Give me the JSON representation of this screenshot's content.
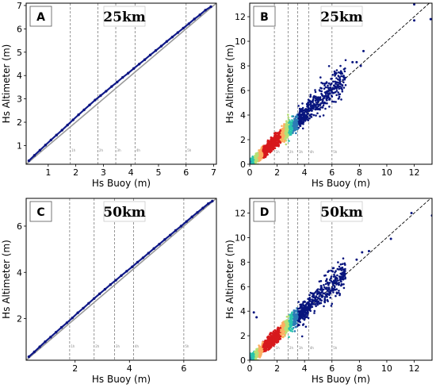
{
  "chart_data": [
    {
      "panel": "A",
      "type": "scatter",
      "annotation": "25km",
      "xlabel": "Hs Buoy (m)",
      "ylabel": "Hs Altimeter (m)",
      "xlim": [
        0.2,
        7.1
      ],
      "ylim": [
        0.2,
        7.1
      ],
      "xticks": [
        1,
        2,
        3,
        4,
        5,
        6,
        7
      ],
      "yticks": [
        1,
        2,
        3,
        4,
        5,
        6,
        7
      ],
      "vlines": [
        1.8,
        2.8,
        3.45,
        4.15,
        6.0
      ],
      "vline_labels": [
        "1h",
        "2h",
        "3h",
        "4h",
        "5h"
      ],
      "x": [
        0.3,
        0.5,
        0.7,
        0.9,
        1.1,
        1.3,
        1.5,
        1.7,
        1.9,
        2.1,
        2.3,
        2.5,
        2.7,
        2.9,
        3.1,
        3.3,
        3.5,
        3.7,
        3.9,
        4.1,
        4.3,
        4.5,
        4.7,
        4.9,
        5.1,
        5.3,
        5.5,
        5.7,
        5.9,
        6.1,
        6.3,
        6.5,
        6.7,
        6.9
      ],
      "y": [
        0.35,
        0.58,
        0.8,
        1.02,
        1.24,
        1.45,
        1.66,
        1.88,
        2.1,
        2.32,
        2.53,
        2.74,
        2.95,
        3.14,
        3.33,
        3.53,
        3.72,
        3.92,
        4.1,
        4.3,
        4.49,
        4.68,
        4.88,
        5.07,
        5.26,
        5.46,
        5.65,
        5.84,
        6.03,
        6.22,
        6.42,
        6.6,
        6.8,
        6.95
      ],
      "reference_line": "1:1"
    },
    {
      "panel": "B",
      "type": "scatter",
      "annotation": "25km",
      "xlabel": "Hs Buoy (m)",
      "ylabel": "Hs Altimeter (m)",
      "xlim": [
        0,
        13.3
      ],
      "ylim": [
        0,
        13.1
      ],
      "xticks": [
        0,
        2,
        4,
        6,
        8,
        10,
        12
      ],
      "yticks": [
        0,
        2,
        4,
        6,
        8,
        10,
        12
      ],
      "vlines": [
        1.8,
        2.8,
        3.5,
        4.3,
        6.0
      ],
      "vline_labels": [
        "1h",
        "2h",
        "3h",
        "4h",
        "5h"
      ],
      "outliers": [
        [
          12.0,
          13.0
        ],
        [
          12.0,
          11.7
        ],
        [
          13.2,
          11.8
        ],
        [
          8.3,
          9.2
        ],
        [
          7.5,
          8.3
        ],
        [
          7.8,
          8.3
        ],
        [
          8.1,
          8.0
        ]
      ],
      "reference_line": "1:1",
      "colormap": "density"
    },
    {
      "panel": "C",
      "type": "scatter",
      "annotation": "50km",
      "xlabel": "Hs Buoy (m)",
      "ylabel": "Hs Altimeter (m)",
      "xlim": [
        0.2,
        7.2
      ],
      "ylim": [
        0.2,
        7.2
      ],
      "xticks": [
        2,
        4,
        6
      ],
      "yticks": [
        2,
        4,
        6
      ],
      "vlines": [
        1.8,
        2.7,
        3.45,
        4.15,
        6.0
      ],
      "vline_labels": [
        "1h",
        "2h",
        "3h",
        "4h",
        "5h"
      ],
      "x": [
        0.3,
        0.5,
        0.7,
        0.9,
        1.1,
        1.3,
        1.5,
        1.7,
        1.9,
        2.1,
        2.3,
        2.5,
        2.7,
        2.9,
        3.1,
        3.3,
        3.5,
        3.7,
        3.9,
        4.1,
        4.3,
        4.5,
        4.7,
        4.9,
        5.1,
        5.3,
        5.5,
        5.7,
        5.9,
        6.1,
        6.3,
        6.5,
        6.7,
        6.9,
        7.05
      ],
      "y": [
        0.35,
        0.56,
        0.78,
        1.0,
        1.2,
        1.41,
        1.62,
        1.82,
        2.03,
        2.25,
        2.45,
        2.66,
        2.87,
        3.07,
        3.27,
        3.47,
        3.66,
        3.86,
        4.05,
        4.24,
        4.44,
        4.63,
        4.83,
        5.03,
        5.22,
        5.42,
        5.61,
        5.81,
        6.0,
        6.2,
        6.4,
        6.59,
        6.78,
        6.97,
        7.08
      ],
      "reference_line": "1:1"
    },
    {
      "panel": "D",
      "type": "scatter",
      "annotation": "50km",
      "xlabel": "Hs Buoy (m)",
      "ylabel": "Hs Altimeter (m)",
      "xlim": [
        0,
        13.3
      ],
      "ylim": [
        0,
        13.2
      ],
      "xticks": [
        0,
        2,
        4,
        6,
        8,
        10,
        12
      ],
      "yticks": [
        0,
        2,
        4,
        6,
        8,
        10,
        12
      ],
      "vlines": [
        1.8,
        2.8,
        3.5,
        4.3,
        6.0
      ],
      "vline_labels": [
        "1h",
        "2h",
        "3h",
        "4h",
        "5h"
      ],
      "outliers": [
        [
          11.8,
          12.0
        ],
        [
          13.3,
          11.8
        ],
        [
          10.3,
          9.9
        ],
        [
          8.7,
          8.9
        ],
        [
          8.2,
          8.8
        ],
        [
          7.8,
          8.2
        ],
        [
          0.3,
          3.9
        ],
        [
          0.5,
          3.5
        ]
      ],
      "reference_line": "1:1",
      "colormap": "density"
    }
  ]
}
